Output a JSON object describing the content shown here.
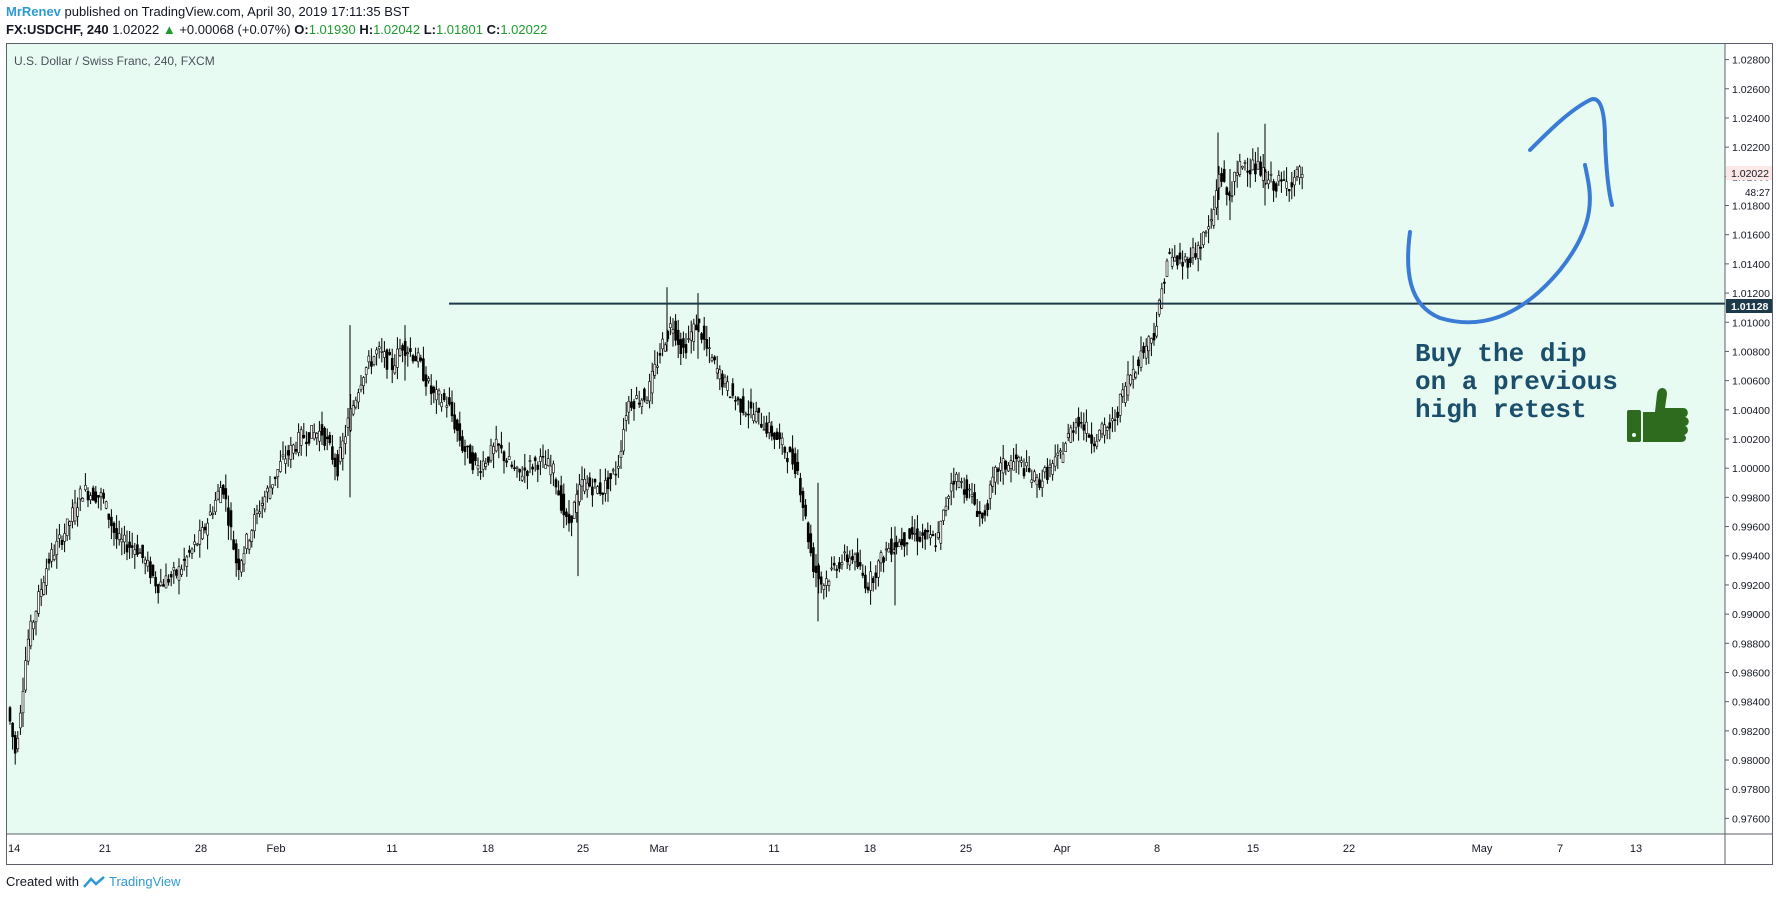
{
  "header": {
    "user": "MrRenev",
    "published": "published on TradingView.com, April 30, 2019 17:11:35 BST",
    "symbol": "FX:USDCHF, 240",
    "last": "1.02022",
    "change": "+0.00068 (+0.07%)",
    "o_label": "O:",
    "o_value": "1.01930",
    "h_label": "H:",
    "h_value": "1.02042",
    "l_label": "L:",
    "l_value": "1.01801",
    "c_label": "C:",
    "c_value": "1.02022"
  },
  "pane_title": "U.S. Dollar / Swiss Franc, 240, FXCM",
  "note": "Buy the dip\non a previous\nhigh retest",
  "footer": {
    "created_with": "Created with",
    "brand": "TradingView"
  },
  "colors": {
    "background": "#e8fbf2",
    "candle": "#000000",
    "support_line": "#1c3a4a",
    "drawing": "#3a7bd5",
    "up": "#1b9d2e",
    "brand": "#2d9bd2",
    "thumb": "#2e6b1e"
  },
  "chart_data": {
    "type": "candlestick",
    "title": "U.S. Dollar / Swiss Franc, 240, FXCM",
    "ylim": [
      0.975,
      1.029
    ],
    "y_ticks": [
      "1.02800",
      "1.02600",
      "1.02400",
      "1.02200",
      "1.02000",
      "1.01800",
      "1.01600",
      "1.01400",
      "1.01200",
      "1.01000",
      "1.00800",
      "1.00600",
      "1.00400",
      "1.00200",
      "1.00000",
      "0.99800",
      "0.99600",
      "0.99400",
      "0.99200",
      "0.99000",
      "0.98800",
      "0.98600",
      "0.98400",
      "0.98200",
      "0.98000",
      "0.97800",
      "0.97600"
    ],
    "x_ticks": [
      "14",
      "21",
      "28",
      "Feb",
      "11",
      "18",
      "25",
      "Mar",
      "11",
      "18",
      "25",
      "Apr",
      "8",
      "15",
      "22",
      "May",
      "7",
      "13"
    ],
    "current_price_label": "1.02022",
    "countdown_label": "48:27",
    "support_level": 1.01128,
    "support_label": "1.01128",
    "price_path": [
      [
        0,
        0.9836
      ],
      [
        8,
        0.9805
      ],
      [
        20,
        0.988
      ],
      [
        40,
        0.9935
      ],
      [
        60,
        0.996
      ],
      [
        75,
        0.9985
      ],
      [
        95,
        0.998
      ],
      [
        110,
        0.995
      ],
      [
        130,
        0.9945
      ],
      [
        150,
        0.992
      ],
      [
        170,
        0.9928
      ],
      [
        195,
        0.9955
      ],
      [
        215,
        0.999
      ],
      [
        230,
        0.9932
      ],
      [
        250,
        0.997
      ],
      [
        275,
        1.0005
      ],
      [
        295,
        1.0022
      ],
      [
        315,
        1.0025
      ],
      [
        330,
        1.0
      ],
      [
        340,
        1.003
      ],
      [
        355,
        1.0065
      ],
      [
        370,
        1.008
      ],
      [
        385,
        1.007
      ],
      [
        395,
        1.0085
      ],
      [
        410,
        1.0075
      ],
      [
        425,
        1.005
      ],
      [
        440,
        1.0045
      ],
      [
        455,
        1.0015
      ],
      [
        470,
        1.0
      ],
      [
        490,
        1.0015
      ],
      [
        510,
        0.9995
      ],
      [
        530,
        1.0005
      ],
      [
        545,
        1.0
      ],
      [
        560,
        0.996
      ],
      [
        575,
        0.999
      ],
      [
        595,
        0.9985
      ],
      [
        610,
        1.0
      ],
      [
        620,
        1.0045
      ],
      [
        640,
        1.005
      ],
      [
        655,
        1.0085
      ],
      [
        665,
        1.01
      ],
      [
        675,
        1.008
      ],
      [
        690,
        1.01
      ],
      [
        700,
        1.008
      ],
      [
        715,
        1.006
      ],
      [
        730,
        1.0045
      ],
      [
        750,
        1.0035
      ],
      [
        770,
        1.002
      ],
      [
        790,
        1.0
      ],
      [
        805,
        0.9935
      ],
      [
        815,
        0.992
      ],
      [
        830,
        0.9935
      ],
      [
        845,
        0.994
      ],
      [
        860,
        0.992
      ],
      [
        880,
        0.9945
      ],
      [
        905,
        0.9955
      ],
      [
        930,
        0.995
      ],
      [
        945,
        0.9995
      ],
      [
        960,
        0.9985
      ],
      [
        975,
        0.9965
      ],
      [
        990,
        1.0
      ],
      [
        1010,
        1.0005
      ],
      [
        1030,
        0.999
      ],
      [
        1050,
        1.0005
      ],
      [
        1070,
        1.0035
      ],
      [
        1085,
        1.002
      ],
      [
        1105,
        1.003
      ],
      [
        1120,
        1.006
      ],
      [
        1135,
        1.008
      ],
      [
        1148,
        1.0095
      ],
      [
        1160,
        1.0145
      ],
      [
        1175,
        1.014
      ],
      [
        1190,
        1.015
      ],
      [
        1205,
        1.017
      ],
      [
        1212,
        1.0205
      ],
      [
        1220,
        1.0185
      ],
      [
        1235,
        1.021
      ],
      [
        1250,
        1.0205
      ],
      [
        1265,
        1.0195
      ],
      [
        1280,
        1.0195
      ],
      [
        1293,
        1.0202
      ]
    ],
    "spikes": [
      [
        340,
        1.0098,
        0.998
      ],
      [
        395,
        1.0098,
        1.006
      ],
      [
        568,
        0.9985,
        0.9926
      ],
      [
        657,
        1.0124,
        1.008
      ],
      [
        688,
        1.012,
        1.0075
      ],
      [
        808,
        0.999,
        0.9895
      ],
      [
        885,
        0.996,
        0.9906
      ],
      [
        1208,
        1.023,
        1.017
      ],
      [
        1255,
        1.0236,
        1.018
      ],
      [
        1220,
        1.0205,
        1.017
      ]
    ]
  }
}
